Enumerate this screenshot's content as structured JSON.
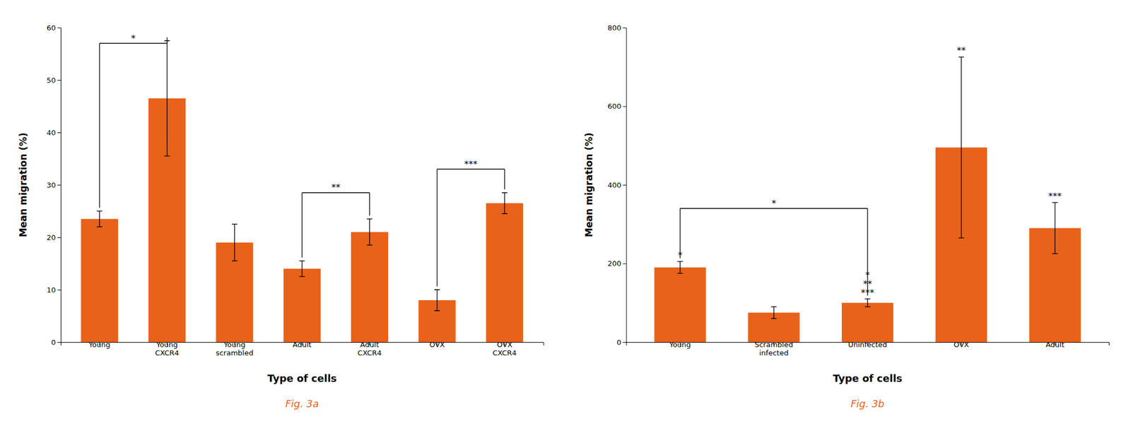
{
  "chart_data": [
    {
      "type": "bar",
      "categories": [
        "Young",
        "Young\nCXCR4",
        "Young\nscrambled",
        "Adult",
        "Adult\nCXCR4",
        "OVX",
        "OVX\nCXCR4"
      ],
      "values": [
        23.5,
        46.5,
        19.0,
        14.0,
        21.0,
        8.0,
        26.5
      ],
      "errors": [
        1.5,
        11.0,
        3.5,
        1.5,
        2.5,
        2.0,
        2.0
      ],
      "color": "#E8621A",
      "xlabel": "Type of cells",
      "ylabel": "Mean migration (%)",
      "ylim": [
        0,
        60
      ],
      "yticks": [
        0,
        10,
        20,
        30,
        40,
        50,
        60
      ],
      "grid": false,
      "caption": "Fig. 3a",
      "annotations": [
        {
          "text": "*",
          "x1": "Young",
          "x2": "Young\nCXCR4",
          "y": 57.0
        },
        {
          "text": "**",
          "x1": "Adult",
          "x2": "Adult\nCXCR4",
          "y": 28.5
        },
        {
          "text": "***",
          "x1": "OVX",
          "x2": "OVX\nCXCR4",
          "y": 33.0
        }
      ]
    },
    {
      "type": "bar",
      "categories": [
        "Young",
        "Scrambled\ninfected",
        "Uninfected",
        "OVX",
        "Adult"
      ],
      "values": [
        190,
        75,
        100,
        495,
        290
      ],
      "errors": [
        15,
        15,
        10,
        230,
        65
      ],
      "color": "#E8621A",
      "xlabel": "Type of cells",
      "ylabel": "Mean migration (%)",
      "ylim": [
        0,
        800
      ],
      "yticks": [
        0,
        200,
        400,
        600,
        800
      ],
      "grid": false,
      "caption": "Fig. 3b",
      "annotations": [
        {
          "text": "*",
          "x1": "Young",
          "x2": "Uninfected",
          "y": 340
        },
        {
          "text": "*",
          "x": "Young"
        },
        {
          "text": "***",
          "x": "Uninfected"
        },
        {
          "text": "**",
          "x": "Uninfected"
        },
        {
          "text": "*",
          "x": "Uninfected"
        },
        {
          "text": "**",
          "x": "OVX"
        },
        {
          "text": "***",
          "x": "Adult"
        }
      ]
    }
  ]
}
